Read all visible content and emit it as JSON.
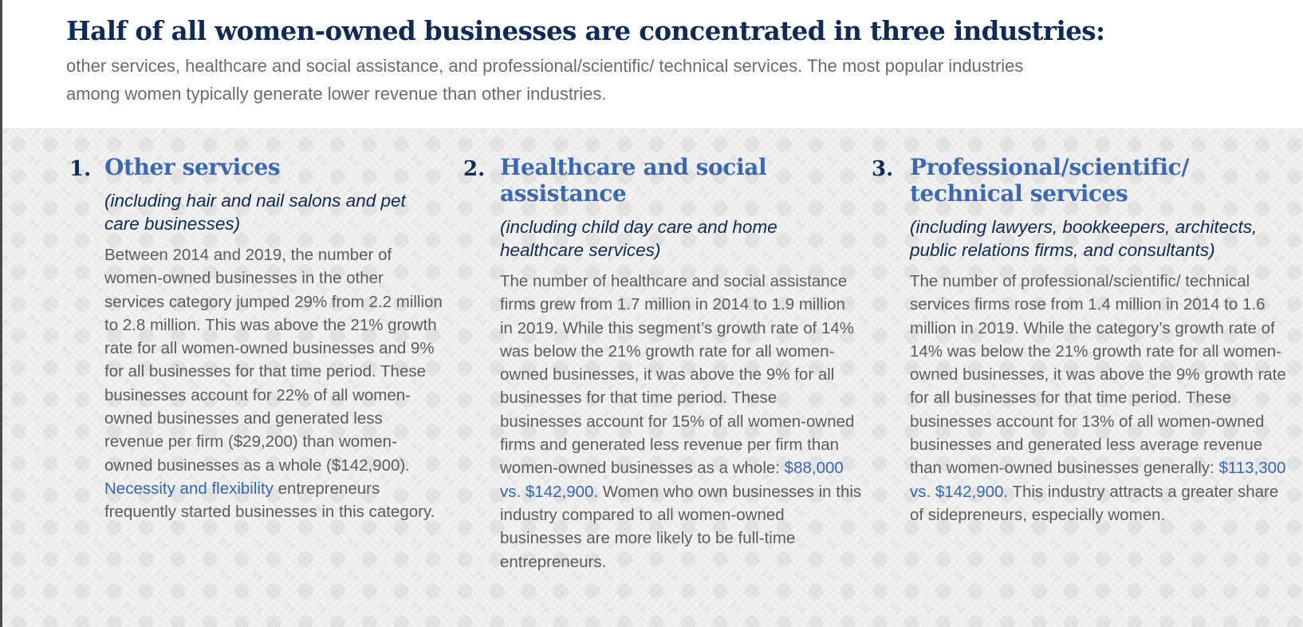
{
  "headline": "Half of all women-owned businesses are concentrated in three industries:",
  "intro": "other services, healthcare and social assistance, and professional/scientific/ technical services. The most popular industries among women typically generate lower revenue than other industries.",
  "industries": [
    {
      "number": "1.",
      "title": "Other services",
      "subtitle": "(including hair and nail salons and pet care businesses)",
      "body_part1": "Between 2014 and 2019, the number of women-owned businesses in the other services category jumped 29% from 2.2 million to 2.8 million. This was above the 21% growth rate for all women-owned businesses and 9% for all businesses for that time period. These businesses account for 22% of all women-owned businesses and generated less revenue per firm ($29,200) than women-owned businesses as a whole ($142,900). ",
      "body_link": "Necessity and flexibility",
      "body_part2": " entrepreneurs frequently started businesses in this category."
    },
    {
      "number": "2.",
      "title": "Healthcare and social assistance",
      "subtitle": "(including child day care and home healthcare services)",
      "body_part1": "The number of healthcare and social assistance firms grew from 1.7 million in 2014 to 1.9 million in 2019. While this segment’s growth rate of 14% was below the 21% growth rate for all women-owned businesses, it was above the 9% for all businesses for that time period. These businesses account for 15% of all women-owned firms and generated less revenue per firm than women-owned businesses as a whole: ",
      "body_link": "$88,000 vs. $142,900.",
      "body_part2": " Women who own businesses in this industry compared to all women-owned businesses are more likely to be full-time entrepreneurs."
    },
    {
      "number": "3.",
      "title": "Professional/scientific/ technical services",
      "subtitle": "(including lawyers, bookkeepers, architects, public relations firms, and consultants)",
      "body_part1": "The number of professional/scientific/ technical services firms rose from 1.4 million in 2014 to 1.6 million in 2019. While the category’s growth rate of 14% was below the 21% growth rate for all women-owned businesses, it was above the 9% growth rate for all businesses for that time period. These businesses account for 13% of all women-owned businesses and generated less average revenue than women-owned businesses generally: ",
      "body_link": "$113,300 vs. $142,900.",
      "body_part2": " This industry attracts a greater share of sidepreneurs, especially women."
    }
  ]
}
